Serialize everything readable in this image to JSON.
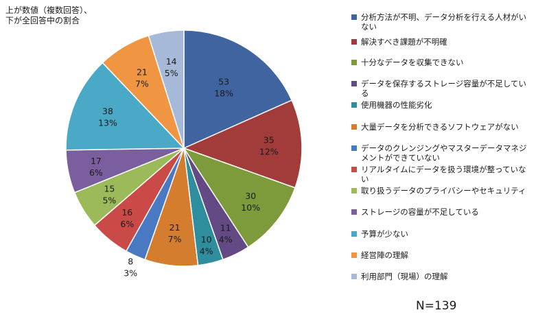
{
  "note": {
    "line1": "上が数値（複数回答）、",
    "line2": "下が全回答中の割合"
  },
  "total_label": "N=139",
  "chart_data": {
    "type": "pie",
    "title": "",
    "start": "12 o'clock, clockwise",
    "slices": [
      {
        "label": "分析方法が不明、データ分析を行える人材がいない",
        "value": 53,
        "percent": "18%",
        "color": "#3f64a0"
      },
      {
        "label": "解決すべき課題が不明確",
        "value": 35,
        "percent": "12%",
        "color": "#a13c3a"
      },
      {
        "label": "十分なデータを収集できない",
        "value": 30,
        "percent": "10%",
        "color": "#7e9b3b"
      },
      {
        "label": "データを保存するストレージ容量が不足している",
        "value": 11,
        "percent": "4%",
        "color": "#634a84"
      },
      {
        "label": "使用機器の性能劣化",
        "value": 10,
        "percent": "4%",
        "color": "#2f8e9e"
      },
      {
        "label": "大量データを分析できるソフトウェアがない",
        "value": 21,
        "percent": "7%",
        "color": "#d47d2f"
      },
      {
        "label": "データのクレンジングやマスターデータマネジメントができていない",
        "value": 8,
        "percent": "3%",
        "color": "#4a79c4"
      },
      {
        "label": "リアルタイムにデータを扱う環境が整っていない",
        "value": 16,
        "percent": "6%",
        "color": "#c94a47"
      },
      {
        "label": "取り扱うデータのプライバシーやセキュリティ",
        "value": 15,
        "percent": "5%",
        "color": "#9dba5a"
      },
      {
        "label": "ストレージの容量が不足している",
        "value": 17,
        "percent": "6%",
        "color": "#7b5e9e"
      },
      {
        "label": "予算が少ない",
        "value": 38,
        "percent": "13%",
        "color": "#4aa9c6"
      },
      {
        "label": "経営陣の理解",
        "value": 21,
        "percent": "7%",
        "color": "#f09642"
      },
      {
        "label": "利用部門（現場）の理解",
        "value": 14,
        "percent": "5%",
        "color": "#a7b9d9"
      }
    ]
  }
}
